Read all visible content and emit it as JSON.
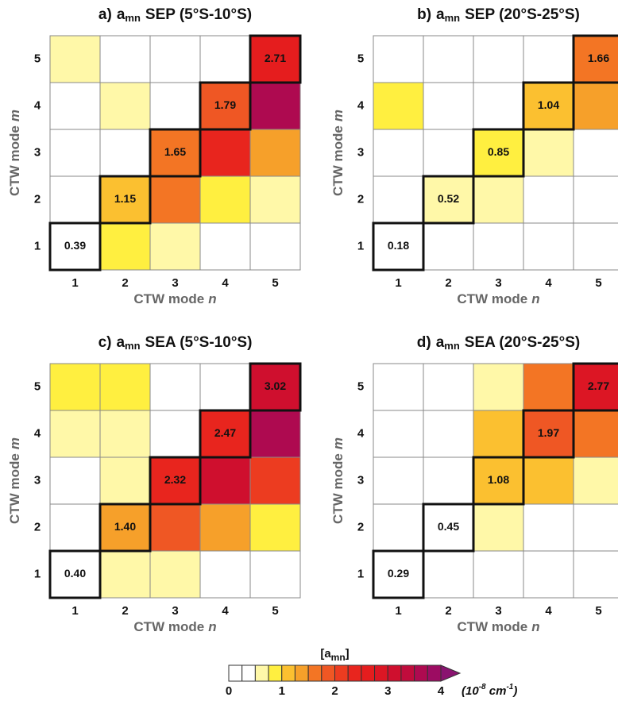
{
  "chart_data": [
    {
      "type": "heatmap",
      "panel": "a)",
      "symbol": "a",
      "subscript": "mn",
      "region": "SEP (5°S-10°S)",
      "x_categories": [
        1,
        2,
        3,
        4,
        5
      ],
      "y_categories": [
        1,
        2,
        3,
        4,
        5
      ],
      "xlabel": "CTW mode",
      "xlabel_var": "n",
      "ylabel": "CTW mode",
      "ylabel_var": "m",
      "highlight_diagonal": true,
      "values": [
        [
          0.39,
          0.9,
          0.6,
          0.2,
          0.2
        ],
        [
          0.2,
          1.15,
          1.6,
          0.9,
          0.6
        ],
        [
          0.2,
          0.2,
          1.65,
          2.4,
          1.4
        ],
        [
          0.2,
          0.6,
          0.2,
          1.79,
          3.6
        ],
        [
          0.6,
          0.2,
          0.2,
          0.2,
          2.71
        ]
      ],
      "value_labels": [
        [
          "0.39",
          null,
          null,
          null,
          null
        ],
        [
          null,
          "1.15",
          null,
          null,
          null
        ],
        [
          null,
          null,
          "1.65",
          null,
          null
        ],
        [
          null,
          null,
          null,
          "1.79",
          null
        ],
        [
          null,
          null,
          null,
          null,
          "2.71"
        ]
      ]
    },
    {
      "type": "heatmap",
      "panel": "b)",
      "symbol": "a",
      "subscript": "mn",
      "region": "SEP (20°S-25°S)",
      "x_categories": [
        1,
        2,
        3,
        4,
        5
      ],
      "y_categories": [
        1,
        2,
        3,
        4,
        5
      ],
      "xlabel": "CTW mode",
      "xlabel_var": "n",
      "ylabel": "CTW mode",
      "ylabel_var": "m",
      "highlight_diagonal": true,
      "values": [
        [
          0.18,
          0.1,
          0.1,
          0.1,
          0.1
        ],
        [
          0.1,
          0.52,
          0.6,
          0.1,
          0.1
        ],
        [
          0.1,
          0.1,
          0.85,
          0.6,
          0.1
        ],
        [
          0.85,
          0.1,
          0.1,
          1.04,
          1.4
        ],
        [
          0.1,
          0.1,
          0.1,
          0.1,
          1.66
        ]
      ],
      "value_labels": [
        [
          "0.18",
          null,
          null,
          null,
          null
        ],
        [
          null,
          "0.52",
          null,
          null,
          null
        ],
        [
          null,
          null,
          "0.85",
          null,
          null
        ],
        [
          null,
          null,
          null,
          "1.04",
          null
        ],
        [
          null,
          null,
          null,
          null,
          "1.66"
        ]
      ]
    },
    {
      "type": "heatmap",
      "panel": "c)",
      "symbol": "a",
      "subscript": "mn",
      "region": "SEA (5°S-10°S)",
      "x_categories": [
        1,
        2,
        3,
        4,
        5
      ],
      "y_categories": [
        1,
        2,
        3,
        4,
        5
      ],
      "xlabel": "CTW mode",
      "xlabel_var": "n",
      "ylabel": "CTW mode",
      "ylabel_var": "m",
      "highlight_diagonal": true,
      "values": [
        [
          0.4,
          0.6,
          0.6,
          0.2,
          0.2
        ],
        [
          0.2,
          1.4,
          1.9,
          1.4,
          0.9
        ],
        [
          0.2,
          0.6,
          2.32,
          3.1,
          2.2
        ],
        [
          0.6,
          0.6,
          0.2,
          2.47,
          3.6
        ],
        [
          0.9,
          0.9,
          0.2,
          0.2,
          3.02
        ]
      ],
      "value_labels": [
        [
          "0.40",
          null,
          null,
          null,
          null
        ],
        [
          null,
          "1.40",
          null,
          null,
          null
        ],
        [
          null,
          null,
          "2.32",
          null,
          null
        ],
        [
          null,
          null,
          null,
          "2.47",
          null
        ],
        [
          null,
          null,
          null,
          null,
          "3.02"
        ]
      ]
    },
    {
      "type": "heatmap",
      "panel": "d)",
      "symbol": "a",
      "subscript": "mn",
      "region": "SEA (20°S-25°S)",
      "x_categories": [
        1,
        2,
        3,
        4,
        5
      ],
      "y_categories": [
        1,
        2,
        3,
        4,
        5
      ],
      "xlabel": "CTW mode",
      "xlabel_var": "n",
      "ylabel": "CTW mode",
      "ylabel_var": "m",
      "highlight_diagonal": true,
      "values": [
        [
          0.29,
          0.1,
          0.1,
          0.1,
          0.1
        ],
        [
          0.1,
          0.45,
          0.6,
          0.1,
          0.1
        ],
        [
          0.1,
          0.1,
          1.08,
          1.1,
          0.6
        ],
        [
          0.1,
          0.1,
          1.1,
          1.97,
          1.7
        ],
        [
          0.1,
          0.1,
          0.6,
          1.6,
          2.77
        ]
      ],
      "value_labels": [
        [
          "0.29",
          null,
          null,
          null,
          null
        ],
        [
          null,
          "0.45",
          null,
          null,
          null
        ],
        [
          null,
          null,
          "1.08",
          null,
          null
        ],
        [
          null,
          null,
          null,
          "1.97",
          null
        ],
        [
          null,
          null,
          null,
          null,
          "2.77"
        ]
      ]
    }
  ],
  "colorbar": {
    "title": "[a",
    "title_sub": "mn",
    "title_end": "]",
    "bounds": [
      0,
      0.25,
      0.5,
      0.75,
      1,
      1.25,
      1.5,
      1.75,
      2,
      2.25,
      2.5,
      2.75,
      3,
      3.25,
      3.5,
      3.75,
      4
    ],
    "colors": [
      "#ffffff",
      "#ffffff",
      "#fff8a8",
      "#ffef40",
      "#fbc030",
      "#f6a02a",
      "#f37524",
      "#ef5724",
      "#ec3c20",
      "#e8251e",
      "#e51d1e",
      "#dc1624",
      "#cf0f2e",
      "#c00c3c",
      "#ae0a50",
      "#9c0c62"
    ],
    "extend_color": "#8a1370",
    "ticks": [
      0,
      1,
      2,
      3,
      4
    ],
    "units": [
      {
        "text": "(10",
        "sup": false
      },
      {
        "text": "-8",
        "sup": true
      },
      {
        "text": " cm",
        "sup": false
      },
      {
        "text": "-1",
        "sup": true
      },
      {
        "text": ")",
        "sup": false
      }
    ]
  }
}
